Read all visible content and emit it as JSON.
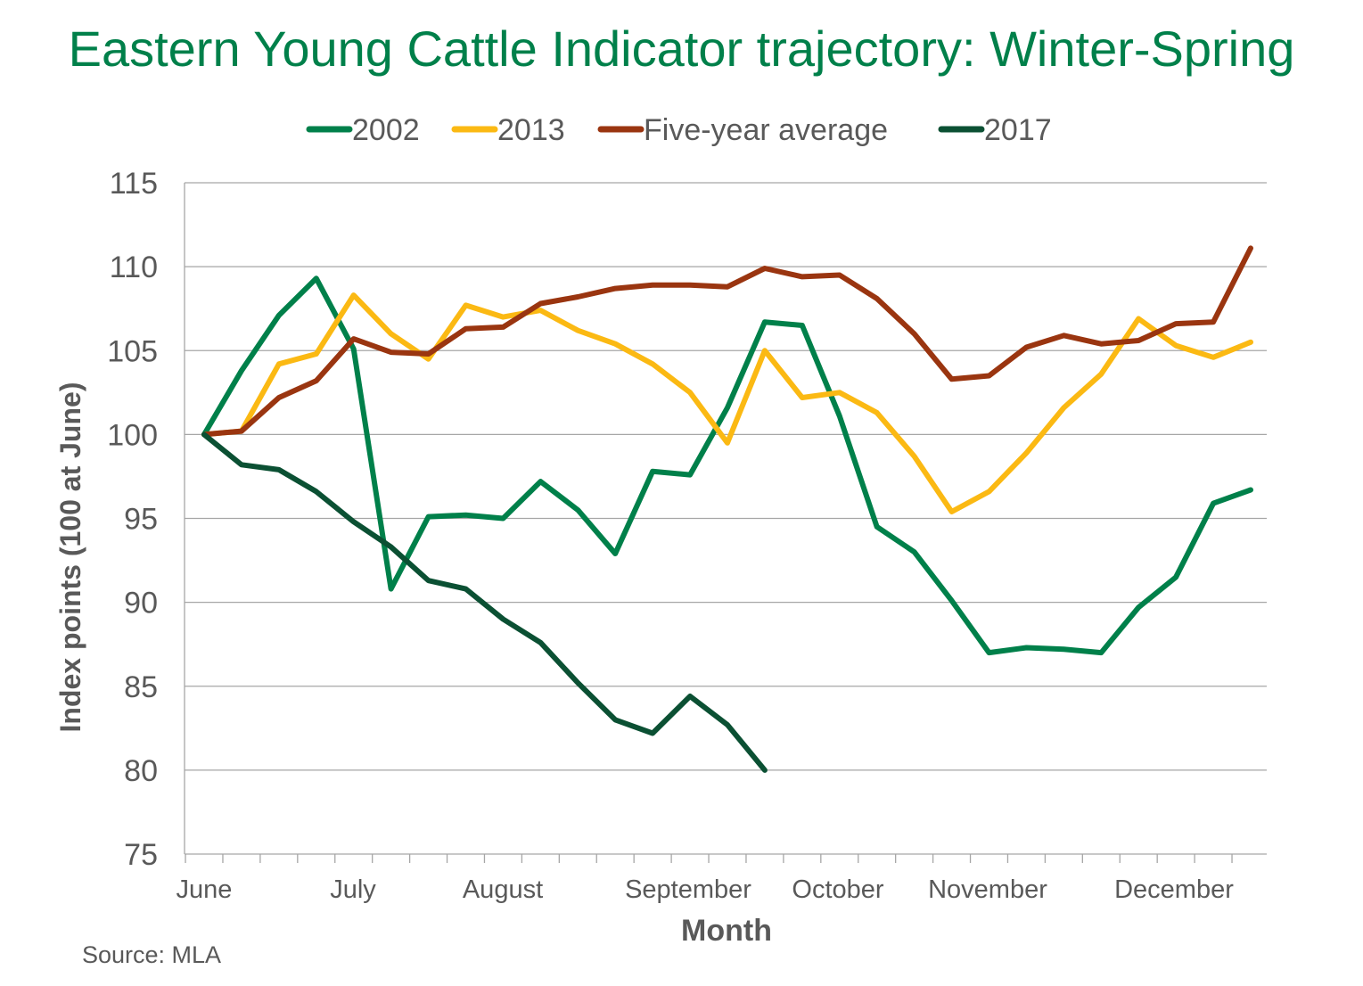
{
  "source": "Source: MLA",
  "chart_data": {
    "type": "line",
    "title": "Eastern Young Cattle Indicator trajectory: Winter-Spring",
    "xlabel": "Month",
    "ylabel": "Index points (100 at June)",
    "ylim": [
      75,
      115
    ],
    "yticks": [
      75,
      80,
      85,
      90,
      95,
      100,
      105,
      110,
      115
    ],
    "month_labels": [
      "June",
      "July",
      "August",
      "September",
      "October",
      "November",
      "December"
    ],
    "week_count": 29,
    "grid": true,
    "legend_position": "top",
    "series": [
      {
        "name": "2002",
        "color": "#00804a",
        "values": [
          100,
          103.8,
          107.1,
          109.3,
          105.1,
          90.8,
          95.1,
          95.2,
          95.0,
          97.2,
          95.5,
          92.9,
          97.8,
          97.6,
          101.6,
          106.7,
          106.5,
          101.1,
          94.5,
          93.0,
          90.1,
          87.0,
          87.3,
          87.2,
          87.0,
          89.7,
          91.5,
          95.9,
          96.7
        ]
      },
      {
        "name": "2013",
        "color": "#fbb913",
        "values": [
          100,
          100.2,
          104.2,
          104.8,
          108.3,
          106.0,
          104.5,
          107.7,
          107.0,
          107.4,
          106.2,
          105.4,
          104.2,
          102.5,
          99.5,
          105.0,
          102.2,
          102.5,
          101.3,
          98.7,
          95.4,
          96.6,
          98.9,
          101.6,
          103.6,
          106.9,
          105.3,
          104.6,
          105.5
        ]
      },
      {
        "name": "Five-year average",
        "color": "#9a3510",
        "values": [
          100,
          100.2,
          102.2,
          103.2,
          105.7,
          104.9,
          104.8,
          106.3,
          106.4,
          107.8,
          108.2,
          108.7,
          108.9,
          108.9,
          108.8,
          109.9,
          109.4,
          109.5,
          108.1,
          106.0,
          103.3,
          103.5,
          105.2,
          105.9,
          105.4,
          105.6,
          106.6,
          106.7,
          111.1
        ]
      },
      {
        "name": "2017",
        "color": "#0b5033",
        "values": [
          100,
          98.2,
          97.9,
          96.6,
          94.8,
          93.3,
          91.3,
          90.8,
          89.0,
          87.6,
          85.2,
          83.0,
          82.2,
          84.4,
          82.7,
          80.0
        ]
      }
    ]
  }
}
